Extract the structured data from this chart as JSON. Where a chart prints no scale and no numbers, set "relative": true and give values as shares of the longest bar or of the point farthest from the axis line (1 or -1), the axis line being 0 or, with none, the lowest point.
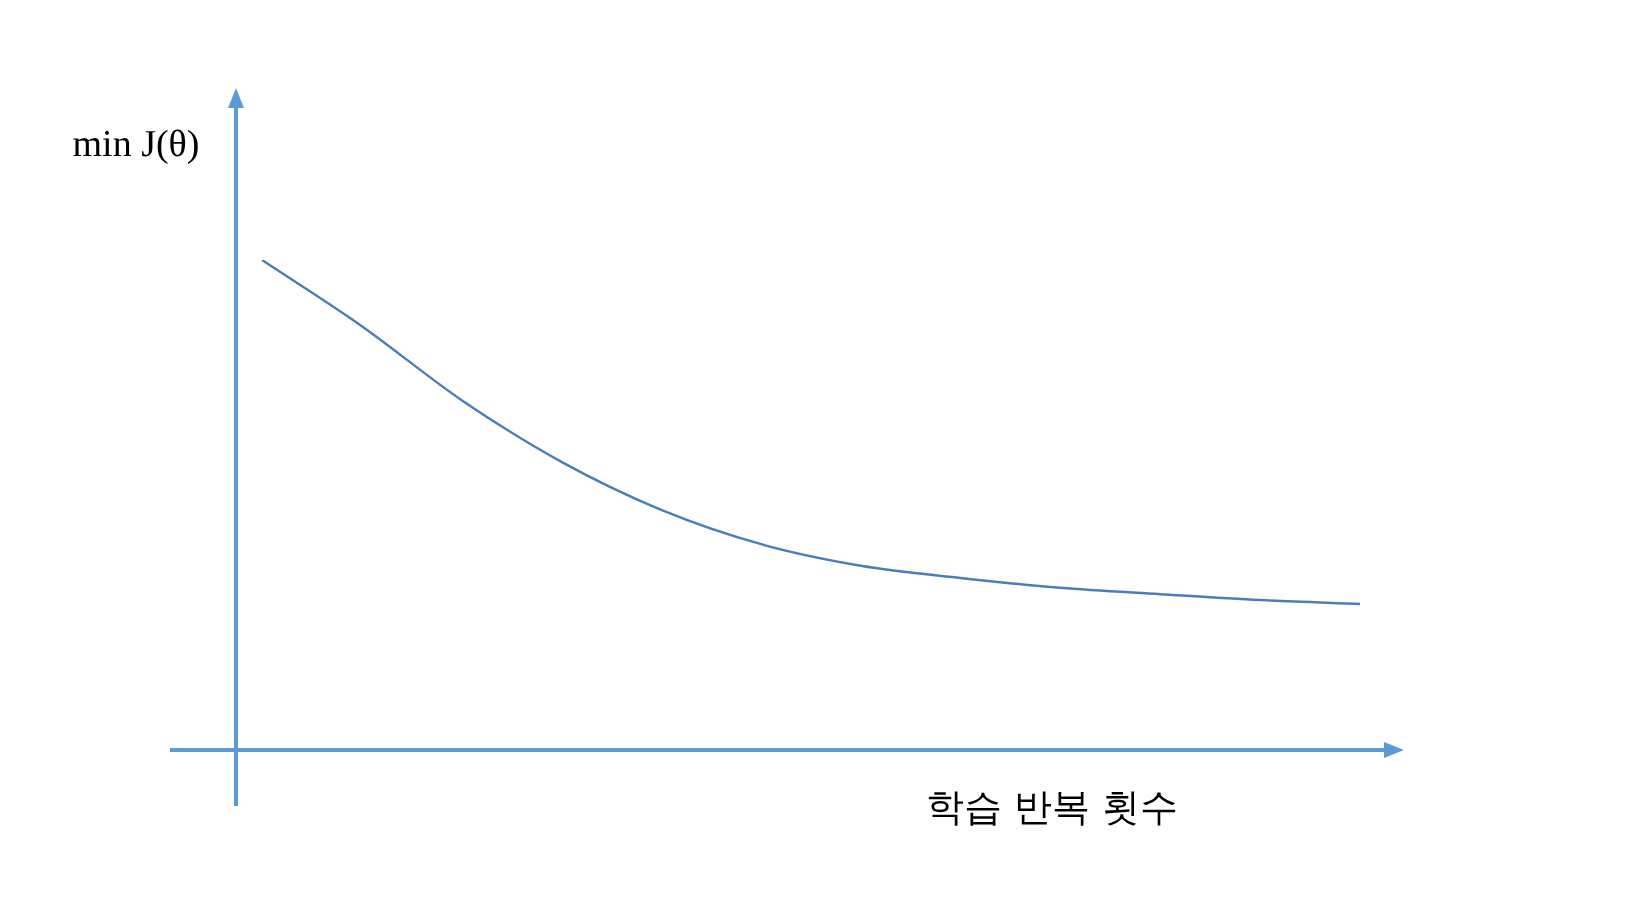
{
  "chart_data": {
    "type": "line",
    "relative": true,
    "xlabel": "학습 반복 횟수",
    "ylabel": "min J(θ)",
    "categories": [
      null,
      null,
      null,
      null,
      null,
      null,
      null,
      null,
      null,
      null,
      null,
      null
    ],
    "series": [
      {
        "color": "#4a7ebb",
        "values": [
          1.0,
          0.865,
          0.714,
          0.588,
          0.49,
          0.42,
          0.376,
          0.351,
          0.331,
          0.318,
          0.306,
          0.298
        ]
      }
    ],
    "marker": "none",
    "legend": false
  }
}
